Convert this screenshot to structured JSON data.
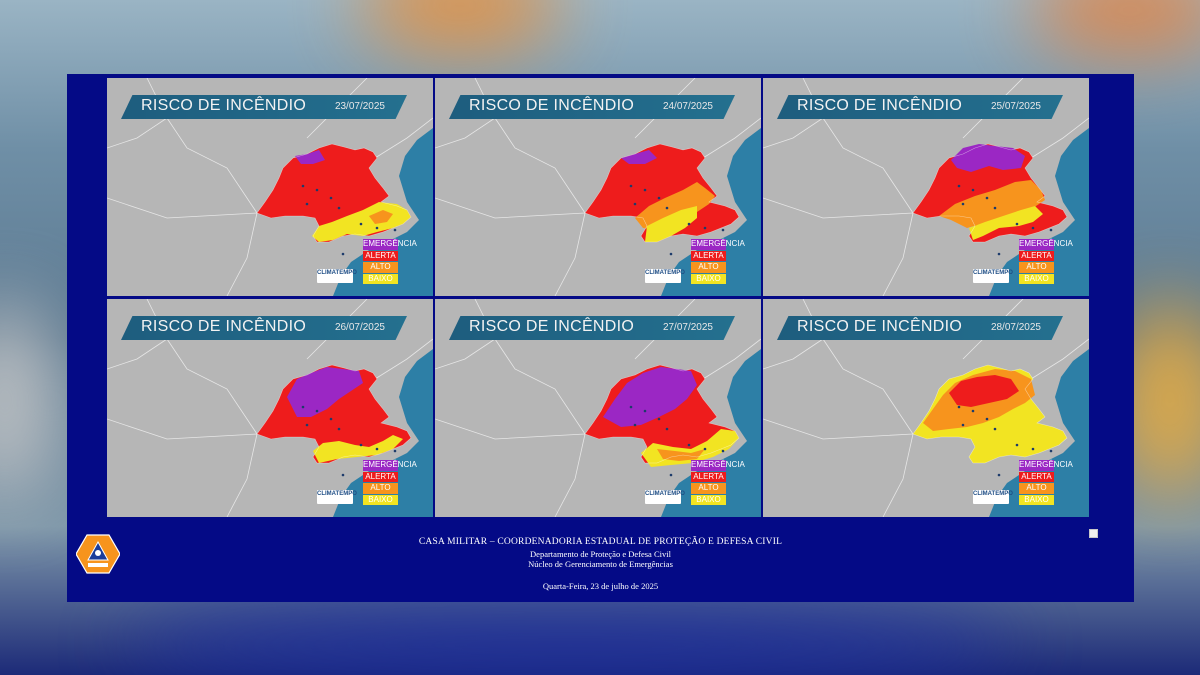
{
  "panels": [
    {
      "title": "RISCO DE INCÊNDIO",
      "date": "23/07/2025",
      "scenario": "d1"
    },
    {
      "title": "RISCO DE INCÊNDIO",
      "date": "24/07/2025",
      "scenario": "d2"
    },
    {
      "title": "RISCO DE INCÊNDIO",
      "date": "25/07/2025",
      "scenario": "d3"
    },
    {
      "title": "RISCO DE INCÊNDIO",
      "date": "26/07/2025",
      "scenario": "d4"
    },
    {
      "title": "RISCO DE INCÊNDIO",
      "date": "27/07/2025",
      "scenario": "d5"
    },
    {
      "title": "RISCO DE INCÊNDIO",
      "date": "28/07/2025",
      "scenario": "d6"
    }
  ],
  "legend": [
    {
      "label": "EMERGÊNCIA",
      "color": "#9b27c4"
    },
    {
      "label": "ALERTA",
      "color": "#ee1c1c"
    },
    {
      "label": "ALTO",
      "color": "#f7941d"
    },
    {
      "label": "BAIXO",
      "color": "#f2e422"
    }
  ],
  "brand": {
    "name": "CLIMATEMPO"
  },
  "colors": {
    "land": "#b6b6b6",
    "ocean": "#2d7fa6",
    "emergencia": "#9b27c4",
    "alerta": "#ee1c1c",
    "alto": "#f7941d",
    "baixo": "#f2e422",
    "frame": "#040a86"
  },
  "footer": {
    "line1": "CASA MILITAR – COORDENADORIA ESTADUAL DE PROTEÇÃO E DEFESA CIVIL",
    "line2": "Departamento de Proteção e Defesa Civil",
    "line3": "Núcleo de Gerenciamento de Emergências",
    "date": "Quarta-Feira, 23 de julho de 2025"
  },
  "logo": {
    "icon": "defesa-civil-logo"
  },
  "broken_image": {
    "icon": "broken-image-icon"
  }
}
